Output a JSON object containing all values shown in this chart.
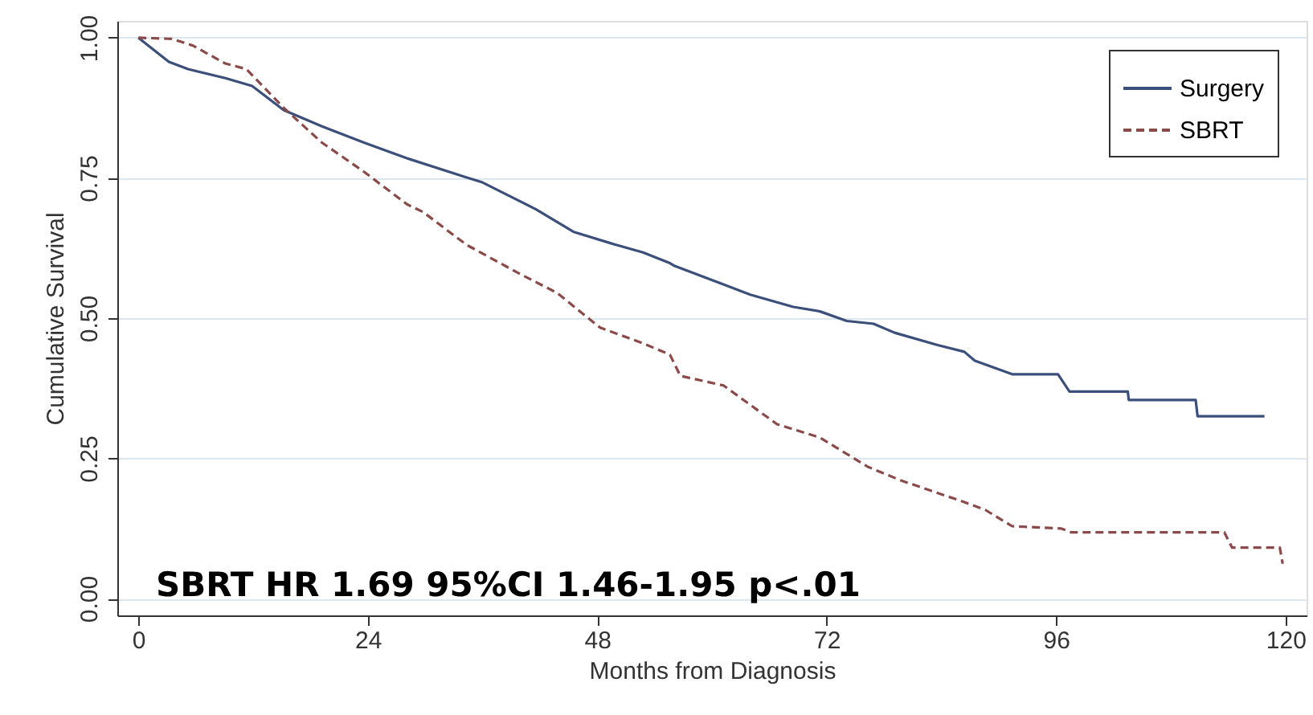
{
  "chart_data": {
    "type": "line",
    "xlabel": "Months from Diagnosis",
    "ylabel": "Cumulative Survival",
    "xlim": [
      -2.2,
      122.2
    ],
    "xticks": [
      0,
      24,
      48,
      72,
      96,
      120
    ],
    "ylim": [
      -0.03,
      1.03
    ],
    "yticks": [
      {
        "value": 0,
        "label": "0.00"
      },
      0.25,
      {
        "value": 0.5,
        "label": "0.50"
      },
      0.75,
      {
        "value": 1,
        "label": "1.00"
      }
    ],
    "grid": "y",
    "legend": "top right",
    "marker": "none",
    "series": [
      {
        "name": "Surgery",
        "color": "#3b4f7a",
        "line_style": "solid",
        "x": [
          0,
          3.2,
          5.2,
          9.1,
          11.9,
          15.2,
          19.2,
          23.6,
          28.1,
          34.3,
          36.0,
          41.6,
          45.5,
          49.9,
          52.8,
          55.6,
          56.1,
          61.2,
          64.0,
          68.5,
          71.3,
          74.1,
          76.9,
          79.1,
          83.6,
          86.4,
          87.5,
          91.4,
          96.2,
          97.4,
          103.5,
          103.6,
          110.6,
          110.8,
          117.8
        ],
        "values": [
          1.0,
          0.957,
          0.944,
          0.928,
          0.914,
          0.871,
          0.842,
          0.813,
          0.785,
          0.751,
          0.742,
          0.694,
          0.654,
          0.631,
          0.617,
          0.598,
          0.593,
          0.56,
          0.542,
          0.52,
          0.512,
          0.495,
          0.49,
          0.474,
          0.452,
          0.44,
          0.424,
          0.4,
          0.4,
          0.369,
          0.369,
          0.354,
          0.354,
          0.325,
          0.325
        ]
      },
      {
        "name": "SBRT",
        "color": "#8b4a4a",
        "line_style": "dashed",
        "x": [
          0,
          3.5,
          5.7,
          9.1,
          11.3,
          15.2,
          19.2,
          23.6,
          28.1,
          29.8,
          34.3,
          39.9,
          43.8,
          48.3,
          52.8,
          55.6,
          56.7,
          61.2,
          66.8,
          71.3,
          76.3,
          79.7,
          86.4,
          88.6,
          91.4,
          96.5,
          97.6,
          113.6,
          114.4,
          119.4,
          119.7
        ],
        "values": [
          1.0,
          0.998,
          0.986,
          0.954,
          0.944,
          0.875,
          0.813,
          0.761,
          0.703,
          0.689,
          0.631,
          0.579,
          0.545,
          0.483,
          0.455,
          0.435,
          0.397,
          0.38,
          0.311,
          0.287,
          0.235,
          0.211,
          0.172,
          0.158,
          0.129,
          0.125,
          0.118,
          0.118,
          0.091,
          0.091,
          0.062
        ]
      }
    ],
    "annotations": [
      "SBRT HR 1.69 95%CI 1.46-1.95 p<.01"
    ]
  }
}
